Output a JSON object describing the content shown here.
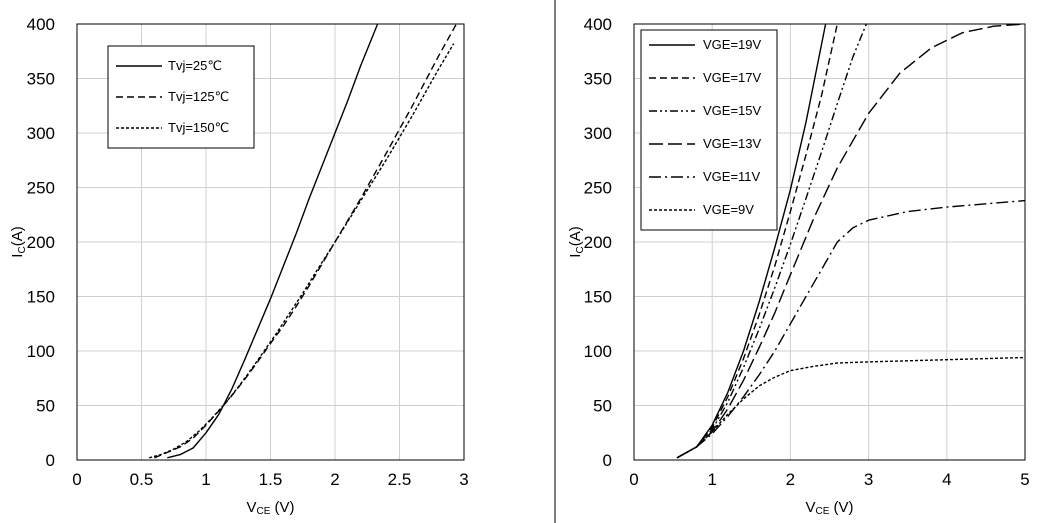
{
  "chart_data": [
    {
      "type": "line",
      "xlabel": "V",
      "xlabel_sub": "CE",
      "xlabel_unit": "(V)",
      "ylabel": "I",
      "ylabel_sub": "C",
      "ylabel_unit": "(A)",
      "xlim": [
        0,
        3
      ],
      "ylim": [
        0,
        400
      ],
      "xticks": [
        0,
        0.5,
        1,
        1.5,
        2,
        2.5,
        3
      ],
      "xtick_labels": [
        "0",
        "0.5",
        "1",
        "1.5",
        "2",
        "2.5",
        "3"
      ],
      "yticks": [
        0,
        50,
        100,
        150,
        200,
        250,
        300,
        350,
        400
      ],
      "ytick_labels": [
        "0",
        "50",
        "100",
        "150",
        "200",
        "250",
        "300",
        "350",
        "400"
      ],
      "grid": true,
      "legend_position": "top-left",
      "series": [
        {
          "name": "Tvj=25℃",
          "dash": "solid",
          "x": [
            0.7,
            0.8,
            0.9,
            1.0,
            1.1,
            1.2,
            1.3,
            1.4,
            1.5,
            1.6,
            1.7,
            1.8,
            1.9,
            2.0,
            2.1,
            2.2,
            2.33
          ],
          "y": [
            2,
            5,
            11,
            25,
            42,
            65,
            92,
            120,
            148,
            178,
            208,
            240,
            270,
            300,
            330,
            362,
            400
          ]
        },
        {
          "name": "Tvj=125℃",
          "dash": "dashed",
          "x": [
            0.6,
            0.7,
            0.8,
            0.9,
            1.0,
            1.1,
            1.2,
            1.3,
            1.4,
            1.5,
            1.6,
            1.7,
            1.8,
            1.9,
            2.0,
            2.2,
            2.4,
            2.6,
            2.8,
            2.95
          ],
          "y": [
            2,
            7,
            12,
            20,
            32,
            45,
            59,
            74,
            90,
            107,
            123,
            141,
            160,
            180,
            200,
            240,
            282,
            325,
            370,
            402
          ]
        },
        {
          "name": "Tvj=150℃",
          "dash": "dotted",
          "x": [
            0.56,
            0.65,
            0.75,
            0.85,
            0.95,
            1.05,
            1.15,
            1.25,
            1.35,
            1.45,
            1.55,
            1.65,
            1.75,
            1.85,
            2.0,
            2.2,
            2.4,
            2.6,
            2.8,
            2.92
          ],
          "y": [
            2,
            5,
            10,
            17,
            27,
            39,
            52,
            67,
            83,
            100,
            117,
            135,
            153,
            172,
            200,
            238,
            276,
            316,
            358,
            382
          ]
        }
      ]
    },
    {
      "type": "line",
      "xlabel": "V",
      "xlabel_sub": "CE",
      "xlabel_unit": "(V)",
      "ylabel": "I",
      "ylabel_sub": "C",
      "ylabel_unit": "(A)",
      "xlim": [
        0,
        5
      ],
      "ylim": [
        0,
        400
      ],
      "xticks": [
        0,
        1,
        2,
        3,
        4,
        5
      ],
      "xtick_labels": [
        "0",
        "1",
        "2",
        "3",
        "4",
        "5"
      ],
      "yticks": [
        0,
        50,
        100,
        150,
        200,
        250,
        300,
        350,
        400
      ],
      "ytick_labels": [
        "0",
        "50",
        "100",
        "150",
        "200",
        "250",
        "300",
        "350",
        "400"
      ],
      "grid": true,
      "legend_position": "top-left",
      "series": [
        {
          "name": "VGE=19V",
          "dash": "solid",
          "x": [
            0.55,
            0.8,
            1.0,
            1.2,
            1.4,
            1.6,
            1.8,
            2.0,
            2.2,
            2.45
          ],
          "y": [
            2,
            12,
            32,
            62,
            100,
            145,
            195,
            248,
            310,
            400
          ]
        },
        {
          "name": "VGE=17V",
          "dash": "dashed",
          "x": [
            0.55,
            0.8,
            1.0,
            1.2,
            1.4,
            1.6,
            1.8,
            2.0,
            2.2,
            2.4,
            2.6
          ],
          "y": [
            2,
            12,
            30,
            58,
            93,
            133,
            178,
            228,
            280,
            335,
            400
          ]
        },
        {
          "name": "VGE=15V",
          "dash": "dashdotdot",
          "x": [
            0.55,
            0.8,
            1.0,
            1.2,
            1.4,
            1.6,
            1.8,
            2.0,
            2.2,
            2.4,
            2.6,
            2.8,
            2.97
          ],
          "y": [
            2,
            12,
            28,
            53,
            85,
            120,
            158,
            198,
            240,
            283,
            327,
            370,
            400
          ]
        },
        {
          "name": "VGE=13V",
          "dash": "longdash",
          "x": [
            0.55,
            0.8,
            1.0,
            1.2,
            1.4,
            1.6,
            1.8,
            2.0,
            2.3,
            2.6,
            3.0,
            3.4,
            3.8,
            4.2,
            4.6,
            5.0
          ],
          "y": [
            2,
            12,
            26,
            47,
            73,
            103,
            135,
            170,
            222,
            268,
            318,
            355,
            378,
            392,
            398,
            400
          ]
        },
        {
          "name": "VGE=11V",
          "dash": "dashdot",
          "x": [
            0.55,
            0.8,
            1.0,
            1.2,
            1.4,
            1.6,
            1.8,
            2.0,
            2.2,
            2.4,
            2.6,
            2.8,
            3.0,
            3.5,
            4.0,
            4.5,
            5.0
          ],
          "y": [
            2,
            12,
            24,
            40,
            58,
            78,
            100,
            125,
            150,
            175,
            200,
            213,
            220,
            228,
            232,
            235,
            238
          ]
        },
        {
          "name": "VGE=9V",
          "dash": "dotted",
          "x": [
            0.55,
            0.8,
            1.0,
            1.2,
            1.4,
            1.6,
            1.8,
            2.0,
            2.3,
            2.6,
            3.0,
            3.5,
            4.0,
            4.5,
            5.0
          ],
          "y": [
            2,
            12,
            26,
            42,
            56,
            68,
            76,
            82,
            86,
            89,
            90,
            91,
            92,
            93,
            94
          ]
        }
      ]
    }
  ]
}
